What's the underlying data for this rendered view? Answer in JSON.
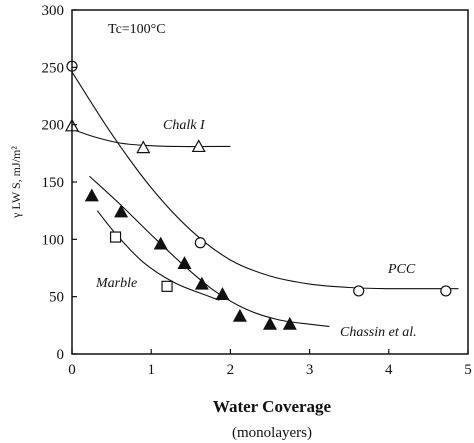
{
  "chart_data": {
    "type": "scatter",
    "annotation": "Tc=100°C",
    "xlabel": "Water Coverage",
    "xlabel_sub": "(monolayers)",
    "ylabel": "γ LW S, mJ/m²",
    "xlim": [
      0,
      5
    ],
    "ylim": [
      0,
      300
    ],
    "x_ticks": [
      "0",
      "1",
      "2",
      "3",
      "4",
      "5"
    ],
    "y_ticks": [
      "0",
      "50",
      "100",
      "150",
      "200",
      "250",
      "300"
    ],
    "grid": false,
    "series": [
      {
        "name": "PCC",
        "marker": "open-circle",
        "points": [
          [
            0,
            251
          ],
          [
            1.62,
            97
          ],
          [
            3.62,
            55
          ],
          [
            4.72,
            55
          ]
        ],
        "fit": [
          [
            0,
            246
          ],
          [
            0.5,
            192
          ],
          [
            1.0,
            145
          ],
          [
            1.5,
            108
          ],
          [
            2.0,
            82
          ],
          [
            2.5,
            68
          ],
          [
            3.0,
            61
          ],
          [
            3.5,
            58
          ],
          [
            4.0,
            57
          ],
          [
            4.5,
            57
          ],
          [
            4.88,
            57
          ]
        ]
      },
      {
        "name": "Chalk I",
        "marker": "open-triangle",
        "points": [
          [
            0,
            199
          ],
          [
            0.9,
            180
          ],
          [
            1.6,
            181
          ]
        ],
        "fit": [
          [
            0,
            196
          ],
          [
            0.3,
            189
          ],
          [
            0.6,
            184
          ],
          [
            0.9,
            182
          ],
          [
            1.3,
            181
          ],
          [
            2.0,
            181
          ]
        ]
      },
      {
        "name": "Chassin et al.",
        "marker": "filled-triangle",
        "points": [
          [
            0.25,
            138
          ],
          [
            0.62,
            124
          ],
          [
            1.12,
            96
          ],
          [
            1.42,
            79
          ],
          [
            1.64,
            61
          ],
          [
            1.9,
            52
          ],
          [
            2.12,
            33
          ],
          [
            2.5,
            26
          ],
          [
            2.75,
            26
          ]
        ],
        "fit": [
          [
            0.22,
            155
          ],
          [
            0.6,
            131
          ],
          [
            1.0,
            104
          ],
          [
            1.4,
            78
          ],
          [
            1.8,
            55
          ],
          [
            2.2,
            39
          ],
          [
            2.6,
            30
          ],
          [
            3.0,
            26
          ],
          [
            3.25,
            24
          ]
        ]
      },
      {
        "name": "Marble",
        "marker": "open-square",
        "points": [
          [
            0.55,
            102
          ],
          [
            1.2,
            59
          ]
        ],
        "fit": [
          [
            0.32,
            125
          ],
          [
            0.55,
            105
          ],
          [
            0.9,
            80
          ],
          [
            1.3,
            62
          ],
          [
            1.7,
            51
          ],
          [
            1.86,
            47
          ]
        ]
      }
    ],
    "series_labels": {
      "Chalk I": "Chalk I",
      "PCC": "PCC",
      "Marble": "Marble",
      "Chassin et al.": "Chassin et al."
    }
  }
}
